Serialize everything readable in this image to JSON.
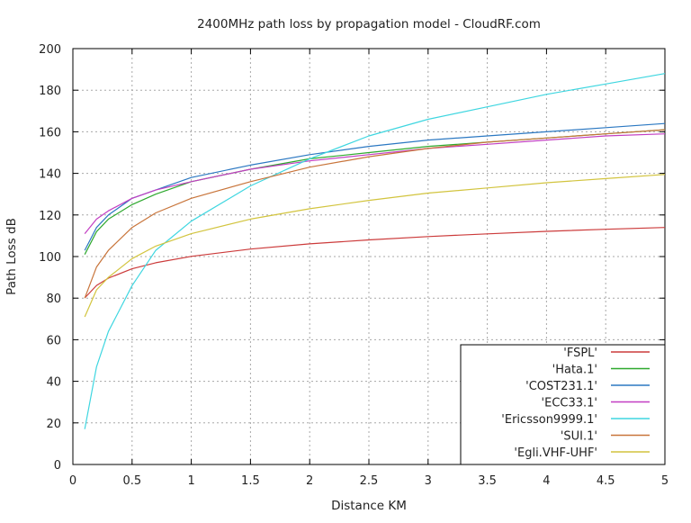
{
  "chart_data": {
    "type": "line",
    "title": "2400MHz path loss by propagation model - CloudRF.com",
    "xlabel": "Distance KM",
    "ylabel": "Path Loss dB",
    "xlim": [
      0,
      5
    ],
    "ylim": [
      0,
      200
    ],
    "xticks": [
      0,
      0.5,
      1,
      1.5,
      2,
      2.5,
      3,
      3.5,
      4,
      4.5,
      5
    ],
    "xtick_labels": [
      "0",
      "0.5",
      "1",
      "1.5",
      "2",
      "2.5",
      "3",
      "3.5",
      "4",
      "4.5",
      "5"
    ],
    "yticks": [
      0,
      20,
      40,
      60,
      80,
      100,
      120,
      140,
      160,
      180,
      200
    ],
    "ytick_labels": [
      "0",
      "20",
      "40",
      "60",
      "80",
      "100",
      "120",
      "140",
      "160",
      "180",
      "200"
    ],
    "grid": true,
    "legend_position": "bottom-right",
    "x": [
      0.1,
      0.2,
      0.3,
      0.5,
      0.7,
      1,
      1.5,
      2,
      2.5,
      3,
      3.5,
      4,
      4.5,
      5
    ],
    "series": [
      {
        "name": "'FSPL'",
        "color": "#cc3b3b",
        "values": [
          80.1,
          86.1,
          89.6,
          94.1,
          97.0,
          100.1,
          103.6,
          106.1,
          108.0,
          109.6,
          110.9,
          112.1,
          113.1,
          114.0
        ]
      },
      {
        "name": "'Hata.1'",
        "color": "#2ea82e",
        "values": [
          101,
          112,
          118,
          125,
          130,
          136,
          142,
          147,
          150,
          153,
          155,
          157,
          159,
          161
        ]
      },
      {
        "name": "'COST231.1'",
        "color": "#2b78c2",
        "values": [
          103,
          114,
          120,
          128,
          132,
          138,
          144,
          149,
          153,
          156,
          158,
          160,
          162,
          164
        ]
      },
      {
        "name": "'ECC33.1'",
        "color": "#c23ec2",
        "values": [
          111,
          118,
          122,
          128,
          132,
          136,
          142,
          146,
          149,
          152,
          154,
          156,
          158,
          159
        ]
      },
      {
        "name": "'Ericsson9999.1'",
        "color": "#3ed6e0",
        "values": [
          17,
          47,
          64,
          86,
          103,
          117,
          134,
          147,
          158,
          166,
          172,
          178,
          183,
          188
        ]
      },
      {
        "name": "'SUI.1'",
        "color": "#c8743a",
        "values": [
          80,
          95,
          103,
          114,
          121,
          128,
          136,
          143,
          148,
          152,
          155,
          157,
          159,
          161
        ]
      },
      {
        "name": "'Egli.VHF-UHF'",
        "color": "#d2c43e",
        "values": [
          71,
          84,
          90,
          99,
          105,
          111,
          118,
          123,
          127,
          130.5,
          133,
          135.5,
          137.5,
          139.5
        ]
      }
    ]
  }
}
